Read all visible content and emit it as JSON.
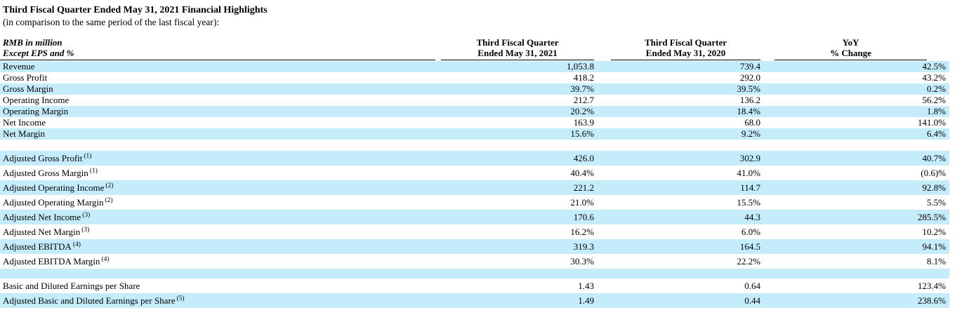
{
  "title": "Third Fiscal Quarter Ended May 31, 2021 Financial Highlights",
  "subtitle": "(in comparison to the same period of the last fiscal year):",
  "colors": {
    "row_highlight": "#C4ECFB",
    "text": "#000000",
    "rule": "#000000"
  },
  "table": {
    "row_label_header": {
      "line1": "RMB in million",
      "line2": "Except EPS and %"
    },
    "columns": [
      {
        "line1": "Third Fiscal Quarter",
        "line2": "Ended May 31, 2021"
      },
      {
        "line1": "Third Fiscal Quarter",
        "line2": "Ended May 31, 2020"
      },
      {
        "line1": "YoY",
        "line2": "% Change"
      }
    ],
    "rows": [
      {
        "type": "data",
        "label": "Revenue",
        "sup": "",
        "q3_2021": "1,053.8",
        "q3_2020": "739.4",
        "yoy": "42.5%",
        "highlight": true,
        "tall": false
      },
      {
        "type": "data",
        "label": "Gross Profit",
        "sup": "",
        "q3_2021": "418.2",
        "q3_2020": "292.0",
        "yoy": "43.2%",
        "highlight": false,
        "tall": false
      },
      {
        "type": "data",
        "label": "Gross Margin",
        "sup": "",
        "q3_2021": "39.7%",
        "q3_2020": "39.5%",
        "yoy": "0.2%",
        "highlight": true,
        "tall": false
      },
      {
        "type": "data",
        "label": "Operating Income",
        "sup": "",
        "q3_2021": "212.7",
        "q3_2020": "136.2",
        "yoy": "56.2%",
        "highlight": false,
        "tall": false
      },
      {
        "type": "data",
        "label": "Operating Margin",
        "sup": "",
        "q3_2021": "20.2%",
        "q3_2020": "18.4%",
        "yoy": "1.8%",
        "highlight": true,
        "tall": false
      },
      {
        "type": "data",
        "label": "Net Income",
        "sup": "",
        "q3_2021": "163.9",
        "q3_2020": "68.0",
        "yoy": "141.0%",
        "highlight": false,
        "tall": false
      },
      {
        "type": "data",
        "label": "Net Margin",
        "sup": "",
        "q3_2021": "15.6%",
        "q3_2020": "9.2%",
        "yoy": "6.4%",
        "highlight": true,
        "tall": false
      },
      {
        "type": "spacer",
        "highlight": false
      },
      {
        "type": "data",
        "label": "Adjusted Gross Profit",
        "sup": "(1)",
        "q3_2021": "426.0",
        "q3_2020": "302.9",
        "yoy": "40.7%",
        "highlight": true,
        "tall": true
      },
      {
        "type": "data",
        "label": "Adjusted Gross Margin",
        "sup": "(1)",
        "q3_2021": "40.4%",
        "q3_2020": "41.0%",
        "yoy": "(0.6)%",
        "highlight": false,
        "tall": true
      },
      {
        "type": "data",
        "label": "Adjusted Operating Income",
        "sup": "(2)",
        "q3_2021": "221.2",
        "q3_2020": "114.7",
        "yoy": "92.8%",
        "highlight": true,
        "tall": true
      },
      {
        "type": "data",
        "label": "Adjusted Operating Margin",
        "sup": "(2)",
        "q3_2021": "21.0%",
        "q3_2020": "15.5%",
        "yoy": "5.5%",
        "highlight": false,
        "tall": true
      },
      {
        "type": "data",
        "label": "Adjusted Net Income",
        "sup": "(3)",
        "q3_2021": "170.6",
        "q3_2020": "44.3",
        "yoy": "285.5%",
        "highlight": true,
        "tall": true
      },
      {
        "type": "data",
        "label": "Adjusted Net Margin",
        "sup": "(3)",
        "q3_2021": "16.2%",
        "q3_2020": "6.0%",
        "yoy": "10.2%",
        "highlight": false,
        "tall": true
      },
      {
        "type": "data",
        "label": "Adjusted EBITDA",
        "sup": "(4)",
        "q3_2021": "319.3",
        "q3_2020": "164.5",
        "yoy": "94.1%",
        "highlight": true,
        "tall": true
      },
      {
        "type": "data",
        "label": "Adjusted EBITDA Margin",
        "sup": "(4)",
        "q3_2021": "30.3%",
        "q3_2020": "22.2%",
        "yoy": "8.1%",
        "highlight": false,
        "tall": true
      },
      {
        "type": "spacer",
        "highlight": true
      },
      {
        "type": "data",
        "label": "Basic and Diluted Earnings per Share",
        "sup": "",
        "q3_2021": "1.43",
        "q3_2020": "0.64",
        "yoy": "123.4%",
        "highlight": false,
        "tall": true
      },
      {
        "type": "data",
        "label": "Adjusted Basic and Diluted Earnings per Share",
        "sup": "(5)",
        "q3_2021": "1.49",
        "q3_2020": "0.44",
        "yoy": "238.6%",
        "highlight": true,
        "tall": true
      }
    ]
  }
}
